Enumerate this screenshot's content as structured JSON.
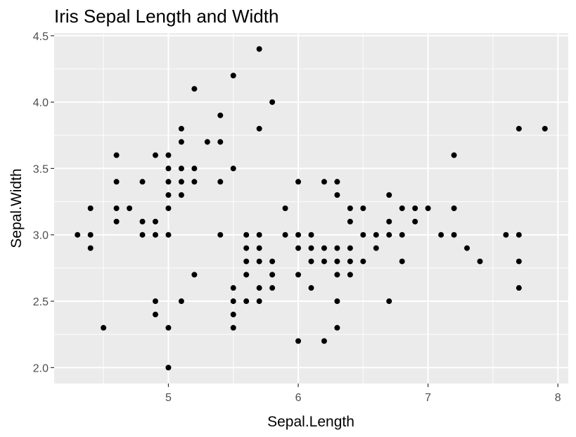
{
  "chart_data": {
    "type": "scatter",
    "title": "Iris Sepal Length and Width",
    "xlabel": "Sepal.Length",
    "ylabel": "Sepal.Width",
    "xlim": [
      4.12,
      8.08
    ],
    "ylim": [
      1.88,
      4.52
    ],
    "x_ticks": [
      5,
      6,
      7,
      8
    ],
    "x_tick_labels": [
      "5",
      "6",
      "7",
      "8"
    ],
    "y_ticks": [
      2.0,
      2.5,
      3.0,
      3.5,
      4.0,
      4.5
    ],
    "y_tick_labels": [
      "2.0",
      "2.5",
      "3.0",
      "3.5",
      "4.0",
      "4.5"
    ],
    "grid": true,
    "legend": false,
    "panel_background": "#ebebeb",
    "point_color": "#000000",
    "points": [
      {
        "x": 4.3,
        "y": 3.0
      },
      {
        "x": 4.4,
        "y": 3.2
      },
      {
        "x": 4.4,
        "y": 3.0
      },
      {
        "x": 4.4,
        "y": 2.9
      },
      {
        "x": 4.5,
        "y": 2.3
      },
      {
        "x": 4.6,
        "y": 3.6
      },
      {
        "x": 4.6,
        "y": 3.4
      },
      {
        "x": 4.6,
        "y": 3.2
      },
      {
        "x": 4.6,
        "y": 3.1
      },
      {
        "x": 4.7,
        "y": 3.2
      },
      {
        "x": 4.8,
        "y": 3.4
      },
      {
        "x": 4.8,
        "y": 3.1
      },
      {
        "x": 4.8,
        "y": 3.0
      },
      {
        "x": 4.9,
        "y": 3.6
      },
      {
        "x": 4.9,
        "y": 3.1
      },
      {
        "x": 4.9,
        "y": 3.0
      },
      {
        "x": 4.9,
        "y": 2.5
      },
      {
        "x": 4.9,
        "y": 2.4
      },
      {
        "x": 5.0,
        "y": 3.6
      },
      {
        "x": 5.0,
        "y": 3.5
      },
      {
        "x": 5.0,
        "y": 3.4
      },
      {
        "x": 5.0,
        "y": 3.3
      },
      {
        "x": 5.0,
        "y": 3.2
      },
      {
        "x": 5.0,
        "y": 3.0
      },
      {
        "x": 5.0,
        "y": 2.3
      },
      {
        "x": 5.0,
        "y": 2.0
      },
      {
        "x": 5.1,
        "y": 3.8
      },
      {
        "x": 5.1,
        "y": 3.7
      },
      {
        "x": 5.1,
        "y": 3.5
      },
      {
        "x": 5.1,
        "y": 3.4
      },
      {
        "x": 5.1,
        "y": 3.3
      },
      {
        "x": 5.1,
        "y": 2.5
      },
      {
        "x": 5.2,
        "y": 4.1
      },
      {
        "x": 5.2,
        "y": 3.5
      },
      {
        "x": 5.2,
        "y": 3.4
      },
      {
        "x": 5.2,
        "y": 2.7
      },
      {
        "x": 5.3,
        "y": 3.7
      },
      {
        "x": 5.4,
        "y": 3.9
      },
      {
        "x": 5.4,
        "y": 3.7
      },
      {
        "x": 5.4,
        "y": 3.4
      },
      {
        "x": 5.4,
        "y": 3.0
      },
      {
        "x": 5.5,
        "y": 4.2
      },
      {
        "x": 5.5,
        "y": 3.5
      },
      {
        "x": 5.5,
        "y": 2.6
      },
      {
        "x": 5.5,
        "y": 2.5
      },
      {
        "x": 5.5,
        "y": 2.4
      },
      {
        "x": 5.5,
        "y": 2.3
      },
      {
        "x": 5.6,
        "y": 3.0
      },
      {
        "x": 5.6,
        "y": 2.9
      },
      {
        "x": 5.6,
        "y": 2.8
      },
      {
        "x": 5.6,
        "y": 2.7
      },
      {
        "x": 5.6,
        "y": 2.5
      },
      {
        "x": 5.7,
        "y": 4.4
      },
      {
        "x": 5.7,
        "y": 3.8
      },
      {
        "x": 5.7,
        "y": 3.0
      },
      {
        "x": 5.7,
        "y": 2.9
      },
      {
        "x": 5.7,
        "y": 2.8
      },
      {
        "x": 5.7,
        "y": 2.6
      },
      {
        "x": 5.7,
        "y": 2.5
      },
      {
        "x": 5.8,
        "y": 4.0
      },
      {
        "x": 5.8,
        "y": 2.8
      },
      {
        "x": 5.8,
        "y": 2.7
      },
      {
        "x": 5.8,
        "y": 2.6
      },
      {
        "x": 5.9,
        "y": 3.2
      },
      {
        "x": 5.9,
        "y": 3.0
      },
      {
        "x": 6.0,
        "y": 3.4
      },
      {
        "x": 6.0,
        "y": 3.0
      },
      {
        "x": 6.0,
        "y": 2.9
      },
      {
        "x": 6.0,
        "y": 2.7
      },
      {
        "x": 6.0,
        "y": 2.2
      },
      {
        "x": 6.1,
        "y": 3.0
      },
      {
        "x": 6.1,
        "y": 2.9
      },
      {
        "x": 6.1,
        "y": 2.8
      },
      {
        "x": 6.1,
        "y": 2.6
      },
      {
        "x": 6.2,
        "y": 3.4
      },
      {
        "x": 6.2,
        "y": 2.9
      },
      {
        "x": 6.2,
        "y": 2.8
      },
      {
        "x": 6.2,
        "y": 2.2
      },
      {
        "x": 6.3,
        "y": 3.4
      },
      {
        "x": 6.3,
        "y": 3.3
      },
      {
        "x": 6.3,
        "y": 2.9
      },
      {
        "x": 6.3,
        "y": 2.8
      },
      {
        "x": 6.3,
        "y": 2.7
      },
      {
        "x": 6.3,
        "y": 2.5
      },
      {
        "x": 6.3,
        "y": 2.3
      },
      {
        "x": 6.4,
        "y": 3.2
      },
      {
        "x": 6.4,
        "y": 3.1
      },
      {
        "x": 6.4,
        "y": 2.9
      },
      {
        "x": 6.4,
        "y": 2.8
      },
      {
        "x": 6.4,
        "y": 2.7
      },
      {
        "x": 6.5,
        "y": 3.2
      },
      {
        "x": 6.5,
        "y": 3.0
      },
      {
        "x": 6.5,
        "y": 2.8
      },
      {
        "x": 6.6,
        "y": 3.0
      },
      {
        "x": 6.6,
        "y": 2.9
      },
      {
        "x": 6.7,
        "y": 3.3
      },
      {
        "x": 6.7,
        "y": 3.1
      },
      {
        "x": 6.7,
        "y": 3.0
      },
      {
        "x": 6.7,
        "y": 2.5
      },
      {
        "x": 6.8,
        "y": 3.2
      },
      {
        "x": 6.8,
        "y": 3.0
      },
      {
        "x": 6.8,
        "y": 2.8
      },
      {
        "x": 6.9,
        "y": 3.2
      },
      {
        "x": 6.9,
        "y": 3.1
      },
      {
        "x": 7.0,
        "y": 3.2
      },
      {
        "x": 7.1,
        "y": 3.0
      },
      {
        "x": 7.2,
        "y": 3.6
      },
      {
        "x": 7.2,
        "y": 3.2
      },
      {
        "x": 7.2,
        "y": 3.0
      },
      {
        "x": 7.3,
        "y": 2.9
      },
      {
        "x": 7.4,
        "y": 2.8
      },
      {
        "x": 7.6,
        "y": 3.0
      },
      {
        "x": 7.7,
        "y": 3.8
      },
      {
        "x": 7.7,
        "y": 3.0
      },
      {
        "x": 7.7,
        "y": 2.8
      },
      {
        "x": 7.7,
        "y": 2.6
      },
      {
        "x": 7.9,
        "y": 3.8
      }
    ]
  }
}
